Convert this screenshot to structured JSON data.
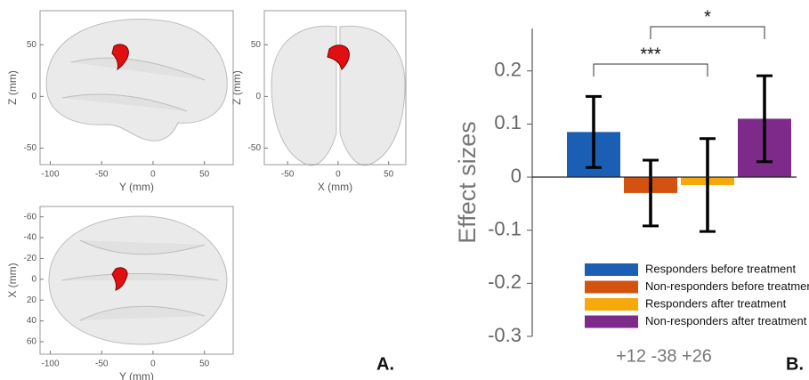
{
  "panel_labels": [
    "A.",
    "B."
  ],
  "chart_data": [
    {
      "type": "image",
      "xlabel": "Y (mm)",
      "ylabel": "Z (mm)",
      "xlim": [
        -110,
        78
      ],
      "xticks": [
        -100,
        -50,
        0,
        50
      ],
      "ylim": [
        -66,
        83
      ],
      "yticks": [
        -50,
        0,
        50
      ]
    },
    {
      "type": "image",
      "xlabel": "X (mm)",
      "ylabel": "Z (mm)",
      "xlim": [
        -73,
        67
      ],
      "xticks": [
        -50,
        0,
        50
      ],
      "ylim": [
        -66,
        83
      ],
      "yticks": [
        -50,
        0,
        50
      ]
    },
    {
      "type": "image",
      "xlabel": "Y (mm)",
      "ylabel": "X (mm)",
      "xlim": [
        -110,
        78
      ],
      "xticks": [
        -100,
        -50,
        0,
        50
      ],
      "ylim": [
        -70,
        72
      ],
      "y_inverted": true,
      "yticks": [
        -60,
        -40,
        -20,
        0,
        20,
        40,
        60
      ]
    },
    {
      "type": "bar",
      "ylabel": "Effect sizes",
      "xlabel": "+12 -38 +26",
      "categories": [
        null
      ],
      "ylim": [
        -0.3,
        0.28
      ],
      "yticks": [
        -0.3,
        -0.2,
        -0.1,
        0,
        0.1,
        0.2
      ],
      "legend": "lower right",
      "series": [
        {
          "name": "Responders before treatment",
          "color": "#1a5fb4",
          "values": [
            0.085
          ],
          "errors": [
            0.067
          ]
        },
        {
          "name": "Non-responders before treatment",
          "color": "#d4520f",
          "values": [
            -0.03
          ],
          "errors": [
            0.062
          ]
        },
        {
          "name": "Responders after treatment",
          "color": "#f5a90a",
          "values": [
            -0.015
          ],
          "errors": [
            0.0875
          ]
        },
        {
          "name": "Non-responders after treatment",
          "color": "#7d2a8a",
          "values": [
            0.11
          ],
          "errors": [
            0.081
          ]
        }
      ],
      "annotations": [
        {
          "text": "***"
        },
        {
          "text": "*"
        }
      ]
    }
  ]
}
